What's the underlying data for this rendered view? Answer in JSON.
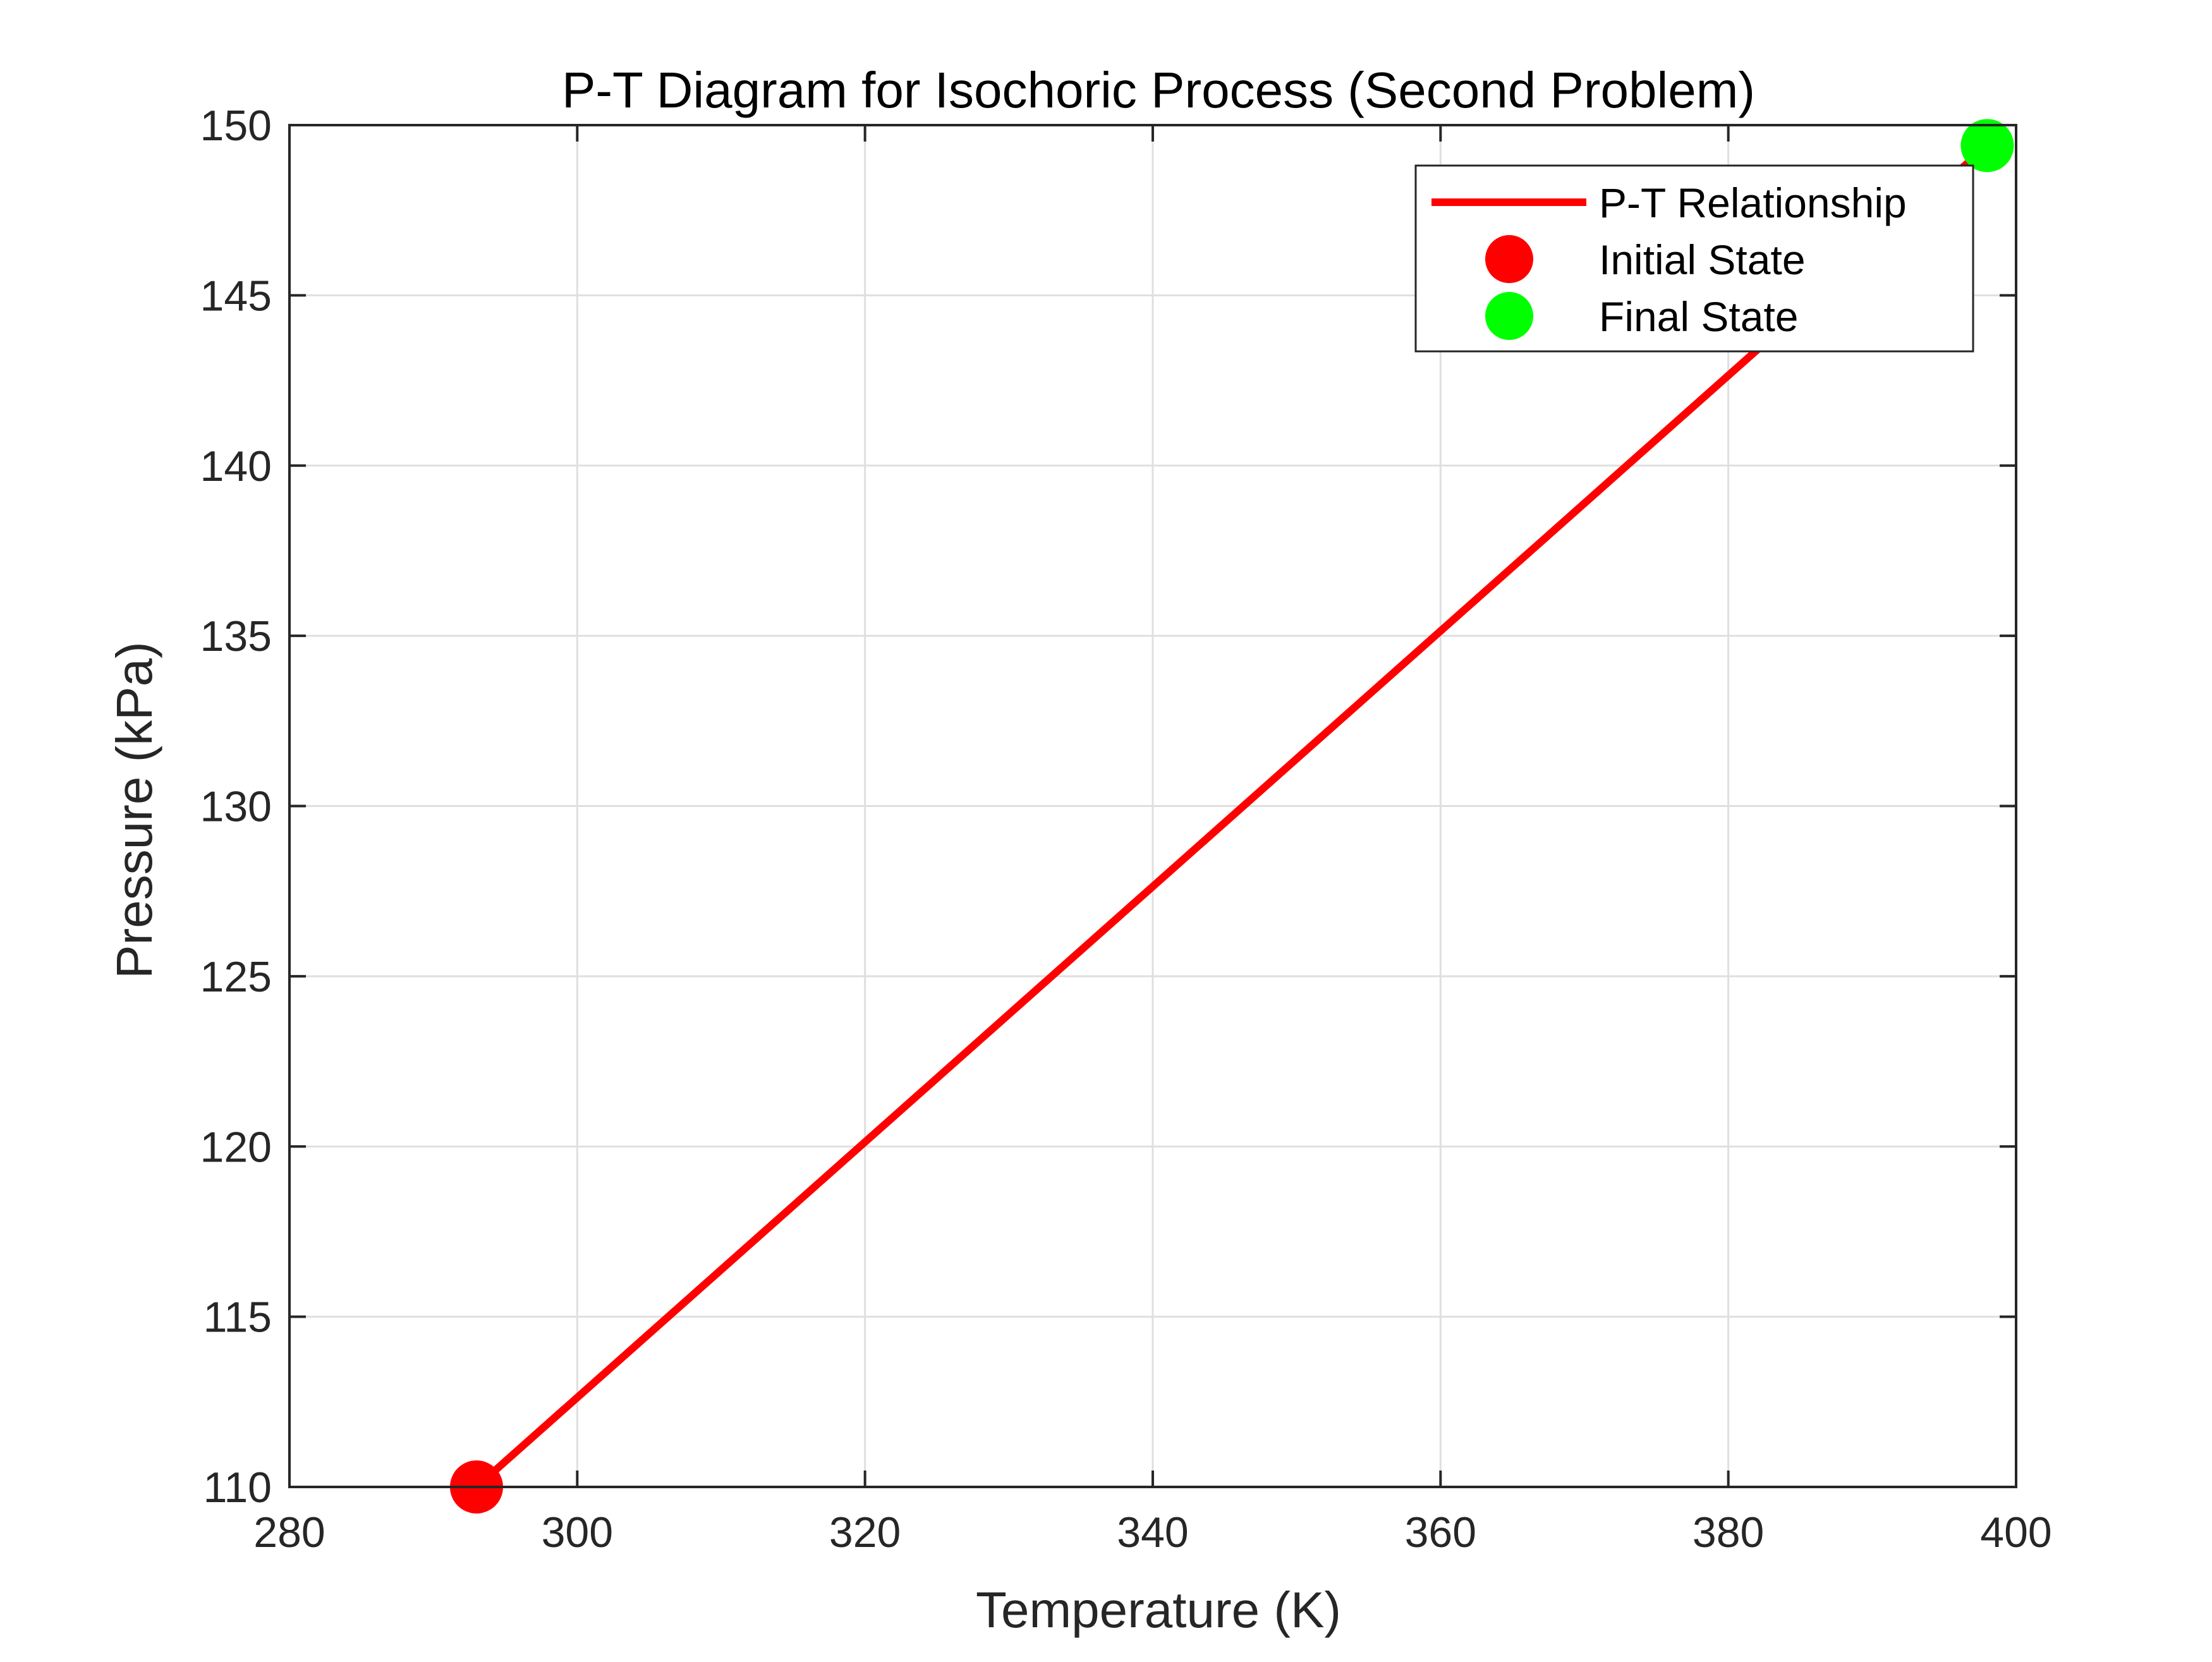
{
  "chart_data": {
    "type": "line",
    "title": "P-T Diagram for Isochoric Process (Second Problem)",
    "xlabel": "Temperature (K)",
    "ylabel": "Pressure (kPa)",
    "xlim": [
      280,
      400
    ],
    "ylim": [
      110,
      150
    ],
    "xticks": [
      280,
      300,
      320,
      340,
      360,
      380,
      400
    ],
    "yticks": [
      110,
      115,
      120,
      125,
      130,
      135,
      140,
      145,
      150
    ],
    "grid": true,
    "legend_position": "top-right",
    "series": [
      {
        "name": "P-T Relationship",
        "kind": "line",
        "color": "#ff0000",
        "x": [
          293,
          398
        ],
        "y": [
          110,
          149.4
        ]
      },
      {
        "name": "Initial State",
        "kind": "marker",
        "color": "#ff0000",
        "x": [
          293
        ],
        "y": [
          110
        ]
      },
      {
        "name": "Final State",
        "kind": "marker",
        "color": "#00ff00",
        "x": [
          398
        ],
        "y": [
          149.4
        ]
      }
    ]
  }
}
